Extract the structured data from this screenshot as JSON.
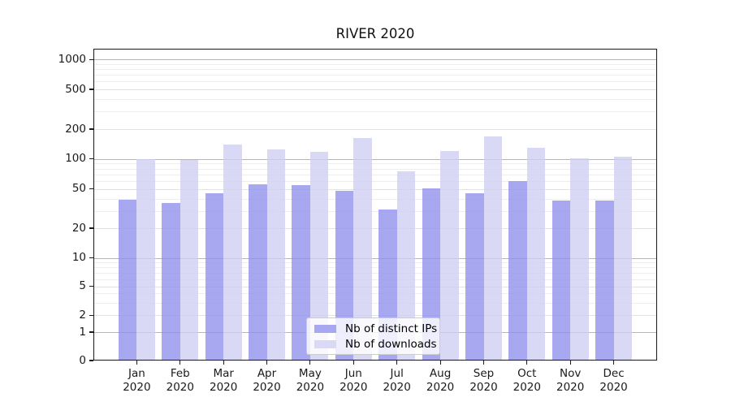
{
  "title": "RIVER 2020",
  "chart_data": {
    "type": "bar",
    "title": "RIVER 2020",
    "year_label": "2020",
    "categories": [
      "Jan",
      "Feb",
      "Mar",
      "Apr",
      "May",
      "Jun",
      "Jul",
      "Aug",
      "Sep",
      "Oct",
      "Nov",
      "Dec"
    ],
    "series": [
      {
        "name": "Nb of distinct IPs",
        "color": "#a8a8f0",
        "values": [
          39,
          36,
          45,
          56,
          55,
          48,
          31,
          51,
          45,
          60,
          38,
          38
        ]
      },
      {
        "name": "Nb of downloads",
        "color": "#d9d9f6",
        "values": [
          100,
          97,
          140,
          125,
          118,
          162,
          75,
          121,
          170,
          130,
          101,
          105
        ]
      }
    ],
    "y_axis": {
      "scale": "symlog",
      "range": [
        0,
        1000
      ],
      "ticks": [
        0,
        1,
        2,
        5,
        10,
        20,
        50,
        100,
        200,
        500,
        1000
      ],
      "tick_labels": [
        "0",
        "1",
        "2",
        "5",
        "10",
        "20",
        "50",
        "100",
        "200",
        "500",
        "1000"
      ]
    },
    "x_axis": {
      "tick_label_line2": "2020"
    },
    "grid": "on",
    "legend": {
      "position": "lower center",
      "entries": [
        "Nb of distinct IPs",
        "Nb of downloads"
      ]
    },
    "colors": {
      "background": "#ffffff",
      "grid_major": "#b5b5b5",
      "grid_minor": "#eeeeee"
    }
  }
}
